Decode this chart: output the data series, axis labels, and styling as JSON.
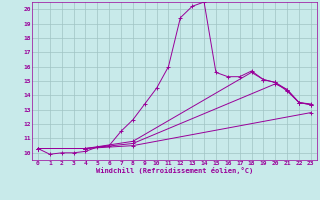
{
  "xlabel": "Windchill (Refroidissement éolien,°C)",
  "bg_color": "#c8eaea",
  "line_color": "#990099",
  "grid_color": "#a0c4c4",
  "xlim": [
    -0.5,
    23.5
  ],
  "ylim": [
    9.5,
    20.5
  ],
  "xticks": [
    0,
    1,
    2,
    3,
    4,
    5,
    6,
    7,
    8,
    9,
    10,
    11,
    12,
    13,
    14,
    15,
    16,
    17,
    18,
    19,
    20,
    21,
    22,
    23
  ],
  "yticks": [
    10,
    11,
    12,
    13,
    14,
    15,
    16,
    17,
    18,
    19,
    20
  ],
  "line1_x": [
    0,
    1,
    2,
    3,
    4,
    5,
    6,
    7,
    8,
    9,
    10,
    11,
    12,
    13,
    14,
    15,
    16,
    17,
    18,
    19,
    20,
    21,
    22,
    23
  ],
  "line1_y": [
    10.3,
    9.9,
    10.0,
    10.0,
    10.1,
    10.4,
    10.5,
    11.5,
    12.3,
    13.4,
    14.5,
    16.0,
    19.4,
    20.2,
    20.5,
    15.6,
    15.3,
    15.3,
    15.7,
    15.1,
    14.9,
    14.4,
    13.5,
    13.4
  ],
  "line2_x": [
    0,
    4,
    8,
    23
  ],
  "line2_y": [
    10.3,
    10.3,
    10.5,
    12.8
  ],
  "line3_x": [
    0,
    4,
    8,
    20,
    21,
    22,
    23
  ],
  "line3_y": [
    10.3,
    10.3,
    10.65,
    14.8,
    14.4,
    13.5,
    13.35
  ],
  "line4_x": [
    0,
    4,
    8,
    18,
    19,
    20,
    21,
    22,
    23
  ],
  "line4_y": [
    10.3,
    10.3,
    10.8,
    15.6,
    15.1,
    14.9,
    14.3,
    13.5,
    13.35
  ]
}
